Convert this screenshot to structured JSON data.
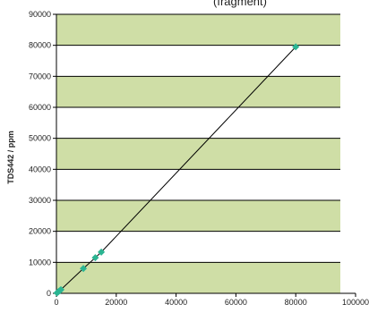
{
  "chart_data": {
    "type": "scatter",
    "title": "(fragment)",
    "xlabel": "",
    "ylabel": "TDS442 / ppm",
    "xlim": [
      0,
      100000
    ],
    "ylim": [
      0,
      90000
    ],
    "x_ticks": [
      0,
      20000,
      40000,
      60000,
      80000,
      100000
    ],
    "y_ticks": [
      0,
      10000,
      20000,
      30000,
      40000,
      50000,
      60000,
      70000,
      80000,
      90000
    ],
    "grid": "horizontal",
    "band_fill": "#cfdea6",
    "band_line": "#000000",
    "marker_color": "#2bb592",
    "line_color": "#000000",
    "series": [
      {
        "x": [
          200,
          500,
          800,
          1200,
          1500,
          9000,
          13000,
          15000,
          80000
        ],
        "y": [
          150,
          400,
          650,
          900,
          1200,
          8000,
          11500,
          13300,
          79500
        ]
      }
    ]
  }
}
